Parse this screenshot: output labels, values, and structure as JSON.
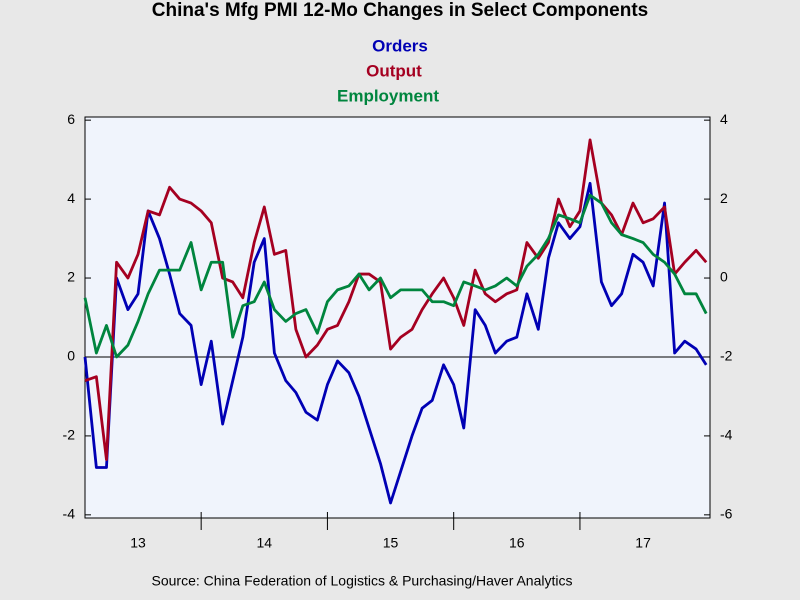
{
  "chart_data": {
    "type": "line",
    "title": "China's Mfg PMI 12-Mo Changes in Select Components",
    "source": "Source:  China Federation of Logistics & Purchasing/Haver Analytics",
    "x": [
      2013.08,
      2013.17,
      2013.25,
      2013.33,
      2013.42,
      2013.5,
      2013.58,
      2013.67,
      2013.75,
      2013.83,
      2013.92,
      2014.0,
      2014.08,
      2014.17,
      2014.25,
      2014.33,
      2014.42,
      2014.5,
      2014.58,
      2014.67,
      2014.75,
      2014.83,
      2014.92,
      2015.0,
      2015.08,
      2015.17,
      2015.25,
      2015.33,
      2015.42,
      2015.5,
      2015.58,
      2015.67,
      2015.75,
      2015.83,
      2015.92,
      2016.0,
      2016.08,
      2016.17,
      2016.25,
      2016.33,
      2016.42,
      2016.5,
      2016.58,
      2016.67,
      2016.75,
      2016.83,
      2016.92,
      2017.0,
      2017.08,
      2017.17,
      2017.25,
      2017.33,
      2017.42,
      2017.5,
      2017.58,
      2017.67,
      2017.75,
      2017.83,
      2017.92,
      2018.0
    ],
    "series": [
      {
        "name": "Orders",
        "color": "#0000b4",
        "axis": "y",
        "values": [
          0.0,
          -2.8,
          -2.8,
          2.0,
          1.2,
          1.6,
          3.7,
          3.0,
          2.1,
          1.1,
          0.8,
          -0.7,
          0.4,
          -1.7,
          -0.6,
          0.5,
          2.4,
          3.0,
          0.1,
          -0.6,
          -0.9,
          -1.4,
          -1.6,
          -0.7,
          -0.1,
          -0.4,
          -1.0,
          -1.8,
          -2.7,
          -3.7,
          -2.9,
          -2.0,
          -1.3,
          -1.1,
          -0.2,
          -0.7,
          -1.8,
          1.2,
          0.8,
          0.1,
          0.4,
          0.5,
          1.6,
          0.7,
          2.5,
          3.4,
          3.0,
          3.3,
          4.4,
          1.9,
          1.3,
          1.6,
          2.6,
          2.4,
          1.8,
          3.9,
          0.1,
          0.4,
          0.2,
          -0.2
        ]
      },
      {
        "name": "Output",
        "color": "#a50021",
        "axis": "y",
        "values": [
          -0.6,
          -0.5,
          -2.6,
          2.4,
          2.0,
          2.6,
          3.7,
          3.6,
          4.3,
          4.0,
          3.9,
          3.7,
          3.4,
          2.0,
          1.9,
          1.5,
          2.9,
          3.8,
          2.6,
          2.7,
          0.7,
          0.0,
          0.3,
          0.7,
          0.8,
          1.4,
          2.1,
          2.1,
          1.9,
          0.2,
          0.5,
          0.7,
          1.2,
          1.6,
          2.0,
          1.5,
          0.8,
          2.2,
          1.6,
          1.4,
          1.6,
          1.7,
          2.9,
          2.5,
          2.9,
          4.0,
          3.3,
          3.7,
          5.5,
          3.9,
          3.6,
          3.1,
          3.9,
          3.4,
          3.5,
          3.8,
          2.1,
          2.4,
          2.7,
          2.4
        ]
      },
      {
        "name": "Employment",
        "color": "#00853e",
        "axis": "y2",
        "values": [
          -0.5,
          -1.9,
          -1.2,
          -2.0,
          -1.7,
          -1.1,
          -0.4,
          0.2,
          0.2,
          0.2,
          0.9,
          -0.3,
          0.4,
          0.4,
          -1.5,
          -0.7,
          -0.6,
          -0.1,
          -0.8,
          -1.1,
          -0.9,
          -0.8,
          -1.4,
          -0.6,
          -0.3,
          -0.2,
          0.1,
          -0.3,
          0.0,
          -0.5,
          -0.3,
          -0.3,
          -0.3,
          -0.6,
          -0.6,
          -0.7,
          -0.1,
          -0.2,
          -0.3,
          -0.2,
          0.0,
          -0.2,
          0.3,
          0.6,
          1.0,
          1.6,
          1.5,
          1.4,
          2.1,
          1.9,
          1.4,
          1.1,
          1.0,
          0.9,
          0.6,
          0.4,
          0.1,
          -0.4,
          -0.4,
          -0.9
        ]
      }
    ],
    "xlim": [
      2013.08,
      2018.03
    ],
    "xticks": [
      {
        "value": 2013.5,
        "label": "13"
      },
      {
        "value": 2014.5,
        "label": "14"
      },
      {
        "value": 2015.5,
        "label": "15"
      },
      {
        "value": 2016.5,
        "label": "16"
      },
      {
        "value": 2017.5,
        "label": "17"
      }
    ],
    "xticks_minor": [
      2014,
      2015,
      2016,
      2017
    ],
    "ylim": [
      -4.08,
      6.08
    ],
    "yticks": [
      -4,
      -2,
      0,
      2,
      4,
      6
    ],
    "y2lim": [
      -6.08,
      4.08
    ],
    "y2ticks": [
      -6,
      -4,
      -2,
      0,
      2,
      4
    ],
    "reference_line": 0,
    "grid": false
  }
}
